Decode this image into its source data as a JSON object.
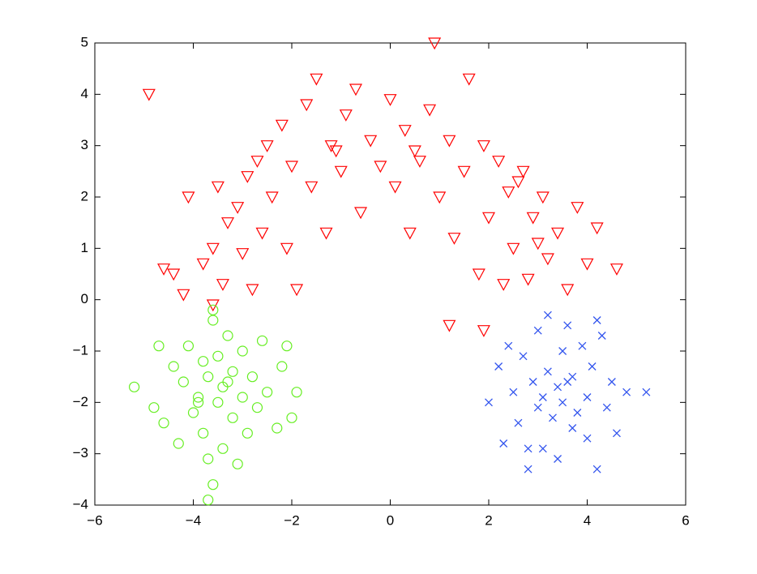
{
  "chart_data": {
    "type": "scatter",
    "xlim": [
      -6,
      6
    ],
    "ylim": [
      -4,
      5
    ],
    "xticks": [
      {
        "value": -6,
        "label": "−6"
      },
      {
        "value": -4,
        "label": "−4"
      },
      {
        "value": -2,
        "label": "−2"
      },
      0,
      2,
      4,
      6
    ],
    "yticks": [
      {
        "value": -4,
        "label": "−4"
      },
      {
        "value": -3,
        "label": "−3"
      },
      {
        "value": -2,
        "label": "−2"
      },
      {
        "value": -1,
        "label": "−1"
      },
      0,
      1,
      2,
      3,
      4,
      5
    ],
    "series": [
      {
        "color": "#ff0000",
        "marker": "triangle-down",
        "x": [
          -4.9,
          -4.6,
          -4.4,
          -4.1,
          -4.2,
          -3.8,
          -3.6,
          -3.5,
          -3.4,
          -3.3,
          -3.1,
          -3.0,
          -2.9,
          -2.8,
          -2.6,
          -2.5,
          -2.4,
          -2.2,
          -2.1,
          -2.0,
          -1.9,
          -1.7,
          -1.6,
          -1.5,
          -1.3,
          -1.2,
          -1.0,
          -0.9,
          -0.7,
          -0.6,
          -0.4,
          -0.2,
          0,
          0.1,
          0.3,
          0.4,
          0.6,
          0.8,
          0.9,
          1.0,
          1.2,
          1.3,
          1.5,
          1.6,
          1.8,
          1.9,
          2.0,
          2.2,
          2.3,
          2.4,
          2.5,
          2.7,
          2.8,
          2.9,
          3.1,
          3.2,
          3.4,
          3.6,
          3.8,
          4.0,
          4.2,
          4.6,
          1.2,
          1.9,
          -3.6,
          -1.1,
          0.5,
          2.6,
          -2.7,
          3.0
        ],
        "y": [
          4.0,
          0.6,
          0.5,
          2.0,
          0.1,
          0.7,
          1.0,
          2.2,
          0.3,
          1.5,
          1.8,
          0.9,
          2.4,
          0.2,
          1.3,
          3.0,
          2.0,
          3.4,
          1.0,
          2.6,
          0.2,
          3.8,
          2.2,
          4.3,
          1.3,
          3.0,
          2.5,
          3.6,
          4.1,
          1.7,
          3.1,
          2.6,
          3.9,
          2.2,
          3.3,
          1.3,
          2.7,
          3.7,
          5.0,
          2.0,
          3.1,
          1.2,
          2.5,
          4.3,
          0.5,
          3.0,
          1.6,
          2.7,
          0.3,
          2.1,
          1.0,
          2.5,
          0.4,
          1.6,
          2.0,
          0.8,
          1.3,
          0.2,
          1.8,
          0.7,
          1.4,
          0.6,
          -0.5,
          -0.6,
          -0.1,
          2.9,
          2.9,
          2.3,
          2.7,
          1.1
        ]
      },
      {
        "color": "#66ee22",
        "marker": "circle",
        "x": [
          -5.2,
          -4.8,
          -4.7,
          -4.6,
          -4.4,
          -4.3,
          -4.2,
          -4.1,
          -4.0,
          -3.9,
          -3.8,
          -3.8,
          -3.7,
          -3.7,
          -3.6,
          -3.6,
          -3.5,
          -3.5,
          -3.4,
          -3.4,
          -3.3,
          -3.2,
          -3.2,
          -3.1,
          -3.0,
          -3.0,
          -2.9,
          -2.8,
          -2.7,
          -2.6,
          -2.5,
          -2.3,
          -2.2,
          -2.1,
          -2.0,
          -1.9,
          -3.7,
          -3.6,
          -3.9,
          -3.3
        ],
        "y": [
          -1.7,
          -2.1,
          -0.9,
          -2.4,
          -1.3,
          -2.8,
          -1.6,
          -0.9,
          -2.2,
          -1.9,
          -1.2,
          -2.6,
          -3.9,
          -1.5,
          -0.4,
          -3.6,
          -2.0,
          -1.1,
          -2.9,
          -1.7,
          -0.7,
          -2.3,
          -1.4,
          -3.2,
          -1.9,
          -1.0,
          -2.6,
          -1.5,
          -2.1,
          -0.8,
          -1.8,
          -2.5,
          -1.3,
          -0.9,
          -2.3,
          -1.8,
          -3.1,
          -0.2,
          -2.0,
          -1.6
        ]
      },
      {
        "color": "#3355ee",
        "marker": "x",
        "x": [
          2.0,
          2.2,
          2.3,
          2.4,
          2.5,
          2.6,
          2.7,
          2.8,
          2.9,
          3.0,
          3.0,
          3.1,
          3.2,
          3.2,
          3.3,
          3.4,
          3.4,
          3.5,
          3.5,
          3.6,
          3.7,
          3.7,
          3.8,
          3.9,
          4.0,
          4.0,
          4.1,
          4.2,
          4.3,
          4.4,
          4.5,
          4.6,
          4.8,
          5.2,
          3.1,
          3.6,
          4.2,
          2.8
        ],
        "y": [
          -2.0,
          -1.3,
          -2.8,
          -0.9,
          -1.8,
          -2.4,
          -1.1,
          -3.3,
          -1.6,
          -2.1,
          -0.6,
          -2.9,
          -1.4,
          -0.3,
          -2.3,
          -1.7,
          -3.1,
          -1.0,
          -2.0,
          -0.5,
          -2.5,
          -1.5,
          -2.2,
          -0.9,
          -1.9,
          -2.7,
          -1.3,
          -3.3,
          -0.7,
          -2.1,
          -1.6,
          -2.6,
          -1.8,
          -1.8,
          -1.9,
          -1.6,
          -0.4,
          -2.9
        ]
      }
    ]
  }
}
